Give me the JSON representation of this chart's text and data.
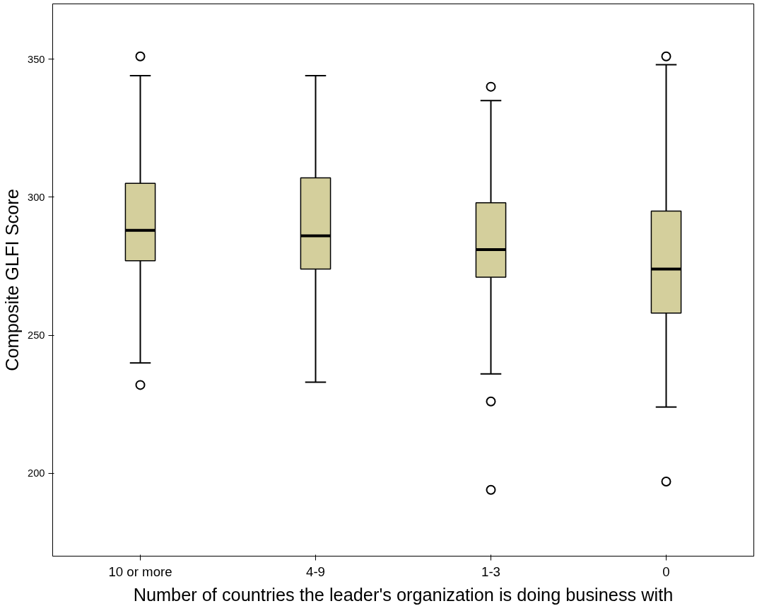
{
  "chart_data": {
    "type": "box",
    "xlabel": "Number of countries the leader's organization is doing business with",
    "ylabel": "Composite GLFI Score",
    "categories": [
      "10 or more",
      "4-9",
      "1-3",
      "0"
    ],
    "ylim": [
      170,
      370
    ],
    "yticks": [
      200,
      250,
      300,
      350
    ],
    "grid": false,
    "series": [
      {
        "color": "#d4cf9c",
        "boxes": [
          {
            "low": 240,
            "q1": 277,
            "median": 288,
            "q3": 305,
            "high": 344,
            "outliers": [
              351,
              232
            ]
          },
          {
            "low": 233,
            "q1": 274,
            "median": 286,
            "q3": 307,
            "high": 344
          },
          {
            "low": 236,
            "q1": 271,
            "median": 281,
            "q3": 298,
            "high": 335,
            "outliers": [
              340,
              226,
              194
            ]
          },
          {
            "low": 224,
            "q1": 258,
            "median": 274,
            "q3": 295,
            "high": 348,
            "outliers": [
              351,
              197
            ]
          }
        ]
      }
    ]
  }
}
